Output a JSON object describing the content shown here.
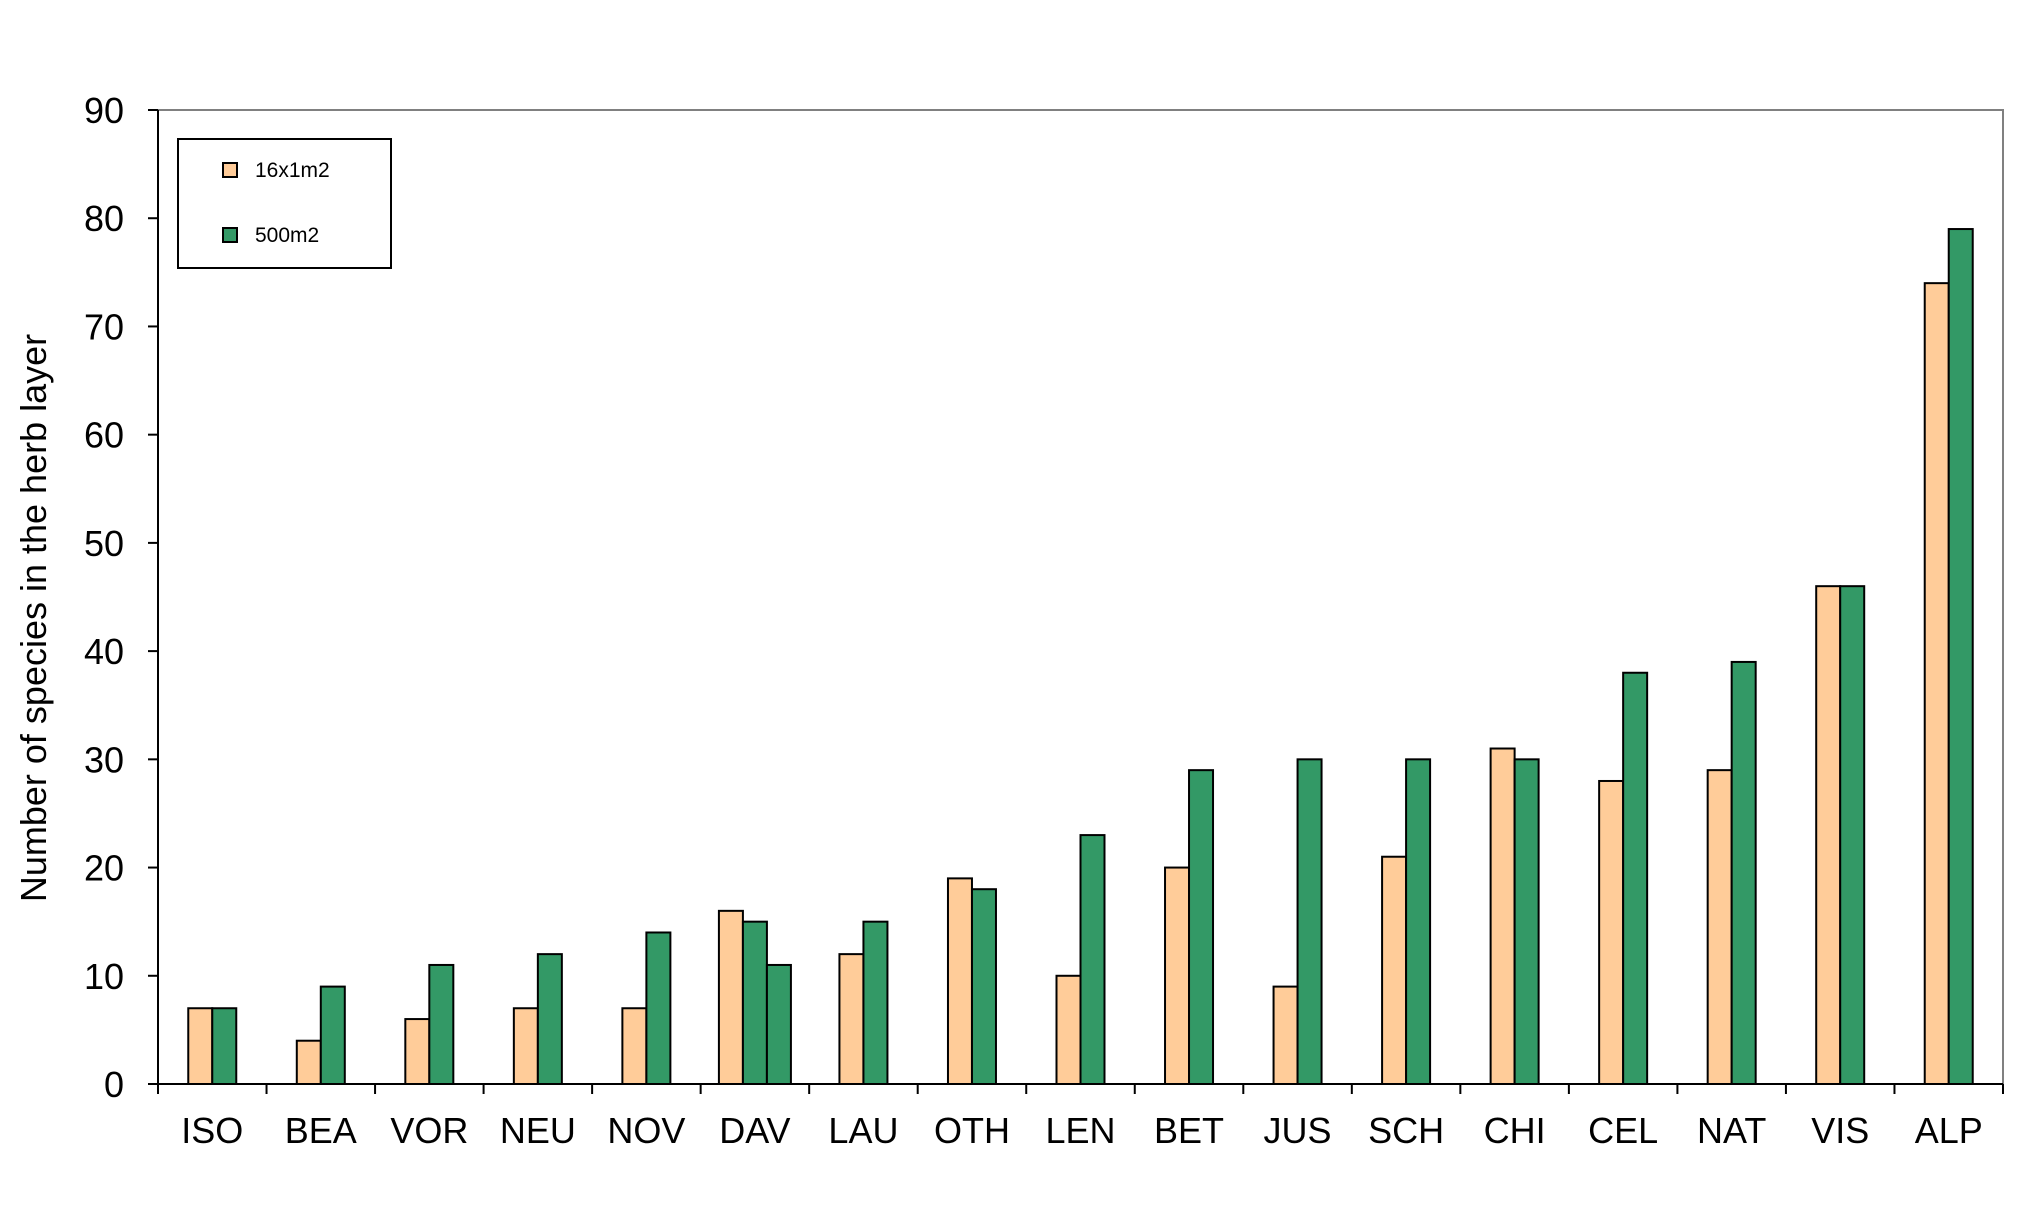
{
  "chart_data": {
    "type": "bar",
    "title": "",
    "xlabel": "",
    "ylabel": "Number of species in the herb layer",
    "ylim": [
      0,
      90
    ],
    "yticks": [
      0,
      10,
      20,
      30,
      40,
      50,
      60,
      70,
      80,
      90
    ],
    "grid": false,
    "legend_position": "top-left",
    "categories": [
      "ISO",
      "BEA",
      "VOR",
      "NEU",
      "NOV",
      "DAV",
      "LAU",
      "OTH",
      "LEN",
      "BET",
      "JUS",
      "SCH",
      "CHI",
      "CEL",
      "NAT",
      "VIS",
      "ALP"
    ],
    "series": [
      {
        "name": "16x1m2",
        "color": "#FFCC99",
        "values": [
          7,
          4,
          6,
          7,
          7,
          16,
          12,
          19,
          10,
          20,
          9,
          21,
          31,
          28,
          29,
          46,
          74
        ]
      },
      {
        "name": "500m2",
        "color": "#339966",
        "values": [
          7,
          9,
          11,
          12,
          14,
          15,
          15,
          18,
          23,
          29,
          30,
          30,
          30,
          38,
          39,
          46,
          79
        ]
      }
    ],
    "extra_bars": [
      {
        "category": "DAV",
        "value": 11,
        "color": "#339966"
      }
    ]
  }
}
